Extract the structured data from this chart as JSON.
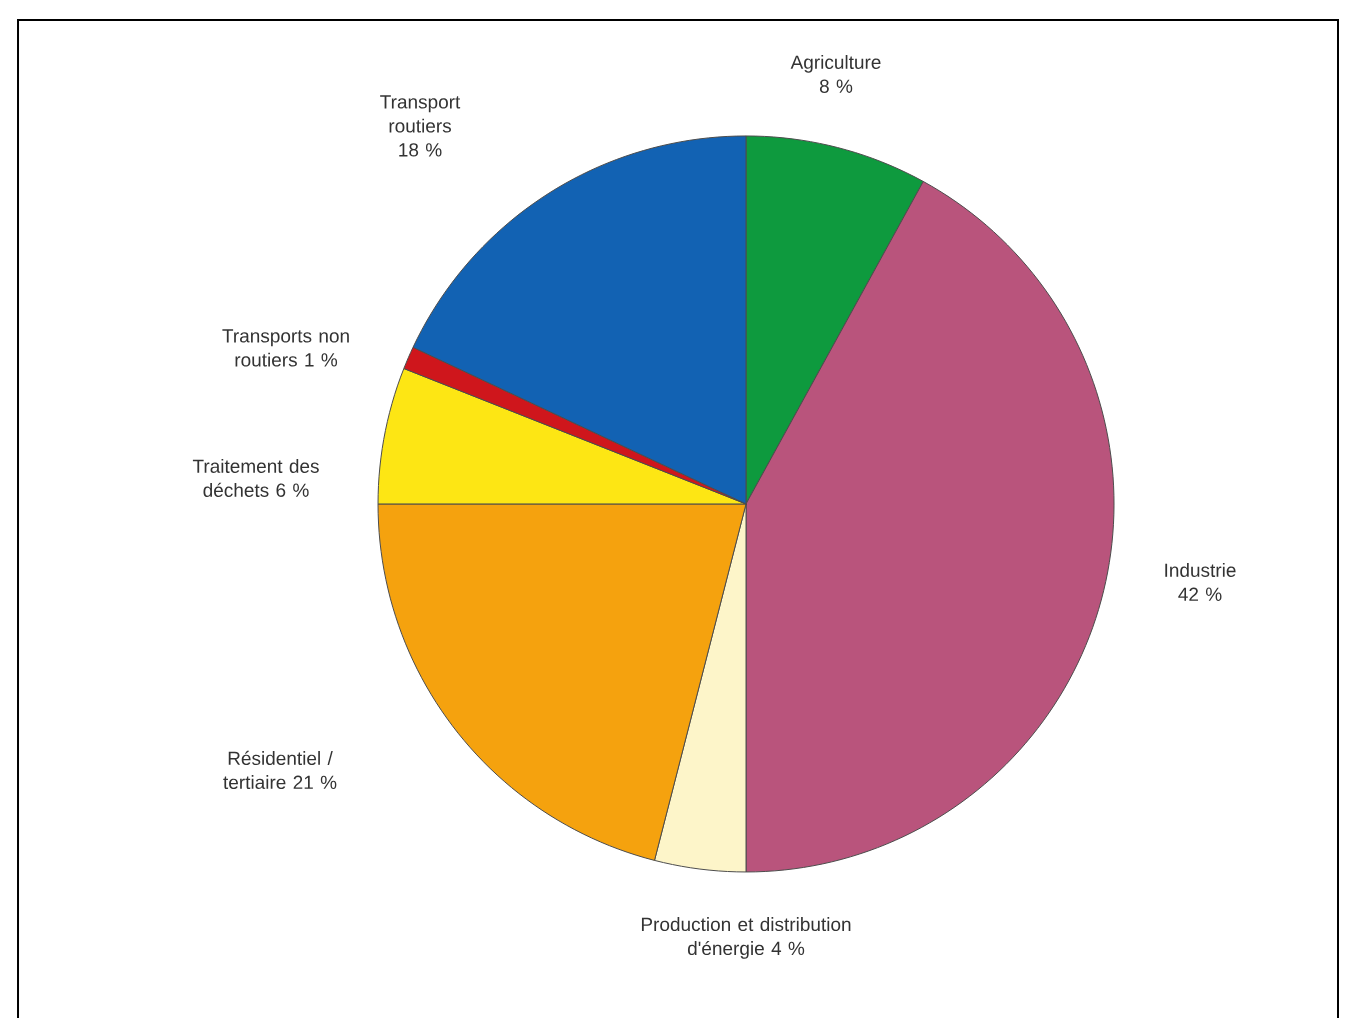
{
  "chart_data": {
    "type": "pie",
    "categories": [
      "Agriculture",
      "Industrie",
      "Production et distribution d'énergie",
      "Résidentiel / tertiaire",
      "Traitement des déchets",
      "Transports non routiers",
      "Transport routiers"
    ],
    "values": [
      8,
      42,
      4,
      21,
      6,
      1,
      18
    ],
    "value_labels": [
      "8 %",
      "42 %",
      "4 %",
      "21 %",
      "6 %",
      "1 %",
      "18 %"
    ],
    "colors": [
      "#0e9a3e",
      "#b9547c",
      "#fdf5c9",
      "#f5a20e",
      "#fde614",
      "#cf161c",
      "#1262b3"
    ]
  }
}
